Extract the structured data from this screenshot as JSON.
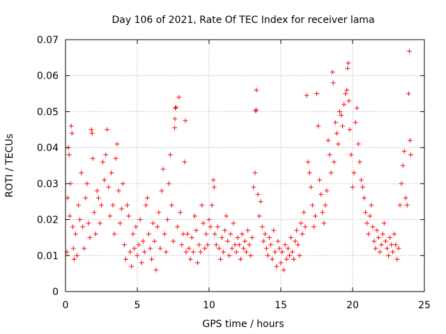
{
  "chart_data": {
    "type": "scatter",
    "title": "Day 106 of 2021, Rate Of TEC Index for receiver lama",
    "xlabel": "GPS time / hours",
    "ylabel": "ROTI / TECUs",
    "xlim": [
      0,
      25
    ],
    "ylim": [
      0,
      0.07
    ],
    "xticks": [
      0,
      5,
      10,
      15,
      20,
      25
    ],
    "yticks": [
      0,
      0.01,
      0.02,
      0.03,
      0.04,
      0.05,
      0.06,
      0.07
    ],
    "xtick_labels": [
      "0",
      "5",
      "10",
      "15",
      "20",
      "25"
    ],
    "ytick_labels": [
      "0",
      "0.01",
      "0.02",
      "0.03",
      "0.04",
      "0.05",
      "0.06",
      "0.07"
    ],
    "grid": true,
    "marker": "plus",
    "marker_color": "#ff0000",
    "series": [
      {
        "name": "ROTI",
        "points": [
          [
            0.1,
            0.011
          ],
          [
            0.15,
            0.026
          ],
          [
            0.2,
            0.04
          ],
          [
            0.25,
            0.038
          ],
          [
            0.3,
            0.021
          ],
          [
            0.35,
            0.03
          ],
          [
            0.4,
            0.046
          ],
          [
            0.45,
            0.044
          ],
          [
            0.5,
            0.018
          ],
          [
            0.55,
            0.012
          ],
          [
            0.6,
            0.009
          ],
          [
            0.7,
            0.016
          ],
          [
            0.8,
            0.01
          ],
          [
            0.9,
            0.024
          ],
          [
            1.0,
            0.02
          ],
          [
            1.1,
            0.033
          ],
          [
            1.2,
            0.018
          ],
          [
            1.3,
            0.012
          ],
          [
            1.4,
            0.026
          ],
          [
            1.5,
            0.03
          ],
          [
            1.6,
            0.019
          ],
          [
            1.7,
            0.015
          ],
          [
            1.8,
            0.045
          ],
          [
            1.85,
            0.044
          ],
          [
            1.9,
            0.037
          ],
          [
            2.0,
            0.022
          ],
          [
            2.1,
            0.016
          ],
          [
            2.2,
            0.028
          ],
          [
            2.3,
            0.026
          ],
          [
            2.4,
            0.019
          ],
          [
            2.5,
            0.024
          ],
          [
            2.6,
            0.036
          ],
          [
            2.7,
            0.031
          ],
          [
            2.8,
            0.038
          ],
          [
            2.9,
            0.045
          ],
          [
            3.0,
            0.029
          ],
          [
            3.1,
            0.021
          ],
          [
            3.2,
            0.033
          ],
          [
            3.3,
            0.024
          ],
          [
            3.4,
            0.016
          ],
          [
            3.5,
            0.037
          ],
          [
            3.6,
            0.041
          ],
          [
            3.7,
            0.028
          ],
          [
            3.8,
            0.019
          ],
          [
            3.9,
            0.023
          ],
          [
            4.0,
            0.03
          ],
          [
            4.1,
            0.013
          ],
          [
            4.2,
            0.009
          ],
          [
            4.3,
            0.024
          ],
          [
            4.4,
            0.021
          ],
          [
            4.5,
            0.011
          ],
          [
            4.6,
            0.007
          ],
          [
            4.7,
            0.016
          ],
          [
            4.8,
            0.012
          ],
          [
            4.9,
            0.018
          ],
          [
            5.0,
            0.01
          ],
          [
            5.1,
            0.013
          ],
          [
            5.2,
            0.02
          ],
          [
            5.3,
            0.008
          ],
          [
            5.4,
            0.014
          ],
          [
            5.5,
            0.011
          ],
          [
            5.6,
            0.024
          ],
          [
            5.7,
            0.026
          ],
          [
            5.8,
            0.016
          ],
          [
            5.9,
            0.012
          ],
          [
            6.0,
            0.009
          ],
          [
            6.1,
            0.019
          ],
          [
            6.2,
            0.014
          ],
          [
            6.3,
            0.006
          ],
          [
            6.4,
            0.018
          ],
          [
            6.5,
            0.022
          ],
          [
            6.6,
            0.012
          ],
          [
            6.7,
            0.028
          ],
          [
            6.8,
            0.034
          ],
          [
            6.9,
            0.016
          ],
          [
            7.0,
            0.011
          ],
          [
            7.1,
            0.02
          ],
          [
            7.2,
            0.03
          ],
          [
            7.3,
            0.038
          ],
          [
            7.4,
            0.024
          ],
          [
            7.5,
            0.014
          ],
          [
            7.6,
            0.0455
          ],
          [
            7.62,
            0.048
          ],
          [
            7.65,
            0.051
          ],
          [
            7.7,
            0.0512
          ],
          [
            7.9,
            0.054
          ],
          [
            7.8,
            0.018
          ],
          [
            8.0,
            0.022
          ],
          [
            8.1,
            0.013
          ],
          [
            8.2,
            0.016
          ],
          [
            8.3,
            0.036
          ],
          [
            8.35,
            0.0475
          ],
          [
            8.4,
            0.011
          ],
          [
            8.5,
            0.016
          ],
          [
            8.6,
            0.012
          ],
          [
            8.7,
            0.009
          ],
          [
            8.8,
            0.015
          ],
          [
            8.9,
            0.011
          ],
          [
            9.0,
            0.021
          ],
          [
            9.1,
            0.017
          ],
          [
            9.2,
            0.008
          ],
          [
            9.3,
            0.013
          ],
          [
            9.4,
            0.011
          ],
          [
            9.5,
            0.024
          ],
          [
            9.6,
            0.019
          ],
          [
            9.7,
            0.012
          ],
          [
            9.8,
            0.016
          ],
          [
            9.9,
            0.013
          ],
          [
            10.0,
            0.02
          ],
          [
            10.1,
            0.018
          ],
          [
            10.2,
            0.024
          ],
          [
            10.3,
            0.031
          ],
          [
            10.35,
            0.029
          ],
          [
            10.4,
            0.016
          ],
          [
            10.5,
            0.013
          ],
          [
            10.6,
            0.018
          ],
          [
            10.7,
            0.012
          ],
          [
            10.8,
            0.009
          ],
          [
            10.9,
            0.015
          ],
          [
            11.0,
            0.011
          ],
          [
            11.1,
            0.017
          ],
          [
            11.2,
            0.021
          ],
          [
            11.3,
            0.014
          ],
          [
            11.4,
            0.01
          ],
          [
            11.5,
            0.016
          ],
          [
            11.6,
            0.012
          ],
          [
            11.7,
            0.019
          ],
          [
            11.8,
            0.013
          ],
          [
            11.9,
            0.011
          ],
          [
            12.0,
            0.015
          ],
          [
            12.1,
            0.013
          ],
          [
            12.2,
            0.009
          ],
          [
            12.3,
            0.016
          ],
          [
            12.4,
            0.012
          ],
          [
            12.5,
            0.014
          ],
          [
            12.6,
            0.011
          ],
          [
            12.7,
            0.017
          ],
          [
            12.8,
            0.013
          ],
          [
            12.9,
            0.01
          ],
          [
            13.0,
            0.015
          ],
          [
            13.1,
            0.029
          ],
          [
            13.2,
            0.033
          ],
          [
            13.25,
            0.0502
          ],
          [
            13.28,
            0.0505
          ],
          [
            13.3,
            0.056
          ],
          [
            13.4,
            0.027
          ],
          [
            13.5,
            0.021
          ],
          [
            13.6,
            0.025
          ],
          [
            13.7,
            0.018
          ],
          [
            13.8,
            0.014
          ],
          [
            13.9,
            0.016
          ],
          [
            14.0,
            0.012
          ],
          [
            14.1,
            0.01
          ],
          [
            14.2,
            0.015
          ],
          [
            14.3,
            0.013
          ],
          [
            14.4,
            0.009
          ],
          [
            14.5,
            0.017
          ],
          [
            14.6,
            0.011
          ],
          [
            14.7,
            0.007
          ],
          [
            14.8,
            0.014
          ],
          [
            14.9,
            0.012
          ],
          [
            15.0,
            0.008
          ],
          [
            15.1,
            0.011
          ],
          [
            15.2,
            0.006
          ],
          [
            15.3,
            0.013
          ],
          [
            15.4,
            0.009
          ],
          [
            15.5,
            0.012
          ],
          [
            15.6,
            0.01
          ],
          [
            15.7,
            0.015
          ],
          [
            15.8,
            0.011
          ],
          [
            15.9,
            0.009
          ],
          [
            16.0,
            0.014
          ],
          [
            16.1,
            0.017
          ],
          [
            16.2,
            0.013
          ],
          [
            16.3,
            0.01
          ],
          [
            16.4,
            0.019
          ],
          [
            16.5,
            0.016
          ],
          [
            16.6,
            0.022
          ],
          [
            16.7,
            0.018
          ],
          [
            16.8,
            0.0545
          ],
          [
            16.9,
            0.036
          ],
          [
            17.0,
            0.033
          ],
          [
            17.1,
            0.029
          ],
          [
            17.2,
            0.024
          ],
          [
            17.3,
            0.018
          ],
          [
            17.4,
            0.021
          ],
          [
            17.5,
            0.055
          ],
          [
            17.6,
            0.046
          ],
          [
            17.7,
            0.031
          ],
          [
            17.8,
            0.027
          ],
          [
            17.9,
            0.022
          ],
          [
            18.0,
            0.019
          ],
          [
            18.1,
            0.024
          ],
          [
            18.2,
            0.028
          ],
          [
            18.3,
            0.042
          ],
          [
            18.4,
            0.038
          ],
          [
            18.5,
            0.033
          ],
          [
            18.6,
            0.061
          ],
          [
            18.65,
            0.058
          ],
          [
            18.7,
            0.036
          ],
          [
            18.8,
            0.047
          ],
          [
            18.9,
            0.044
          ],
          [
            19.0,
            0.041
          ],
          [
            19.1,
            0.05
          ],
          [
            19.2,
            0.049
          ],
          [
            19.3,
            0.046
          ],
          [
            19.4,
            0.052
          ],
          [
            19.5,
            0.055
          ],
          [
            19.6,
            0.056
          ],
          [
            19.65,
            0.062
          ],
          [
            19.7,
            0.0635
          ],
          [
            19.75,
            0.053
          ],
          [
            19.8,
            0.045
          ],
          [
            19.9,
            0.038
          ],
          [
            20.0,
            0.029
          ],
          [
            20.1,
            0.033
          ],
          [
            20.2,
            0.047
          ],
          [
            20.3,
            0.051
          ],
          [
            20.4,
            0.041
          ],
          [
            20.5,
            0.036
          ],
          [
            20.6,
            0.031
          ],
          [
            20.7,
            0.029
          ],
          [
            20.8,
            0.026
          ],
          [
            20.9,
            0.022
          ],
          [
            21.0,
            0.019
          ],
          [
            21.1,
            0.016
          ],
          [
            21.2,
            0.021
          ],
          [
            21.3,
            0.024
          ],
          [
            21.4,
            0.018
          ],
          [
            21.5,
            0.014
          ],
          [
            21.6,
            0.012
          ],
          [
            21.7,
            0.017
          ],
          [
            21.8,
            0.015
          ],
          [
            21.9,
            0.011
          ],
          [
            22.0,
            0.013
          ],
          [
            22.1,
            0.016
          ],
          [
            22.2,
            0.019
          ],
          [
            22.3,
            0.014
          ],
          [
            22.4,
            0.012
          ],
          [
            22.5,
            0.01
          ],
          [
            22.6,
            0.015
          ],
          [
            22.7,
            0.013
          ],
          [
            22.8,
            0.011
          ],
          [
            22.9,
            0.016
          ],
          [
            23.0,
            0.013
          ],
          [
            23.1,
            0.009
          ],
          [
            23.2,
            0.012
          ],
          [
            23.3,
            0.024
          ],
          [
            23.4,
            0.03
          ],
          [
            23.5,
            0.035
          ],
          [
            23.6,
            0.039
          ],
          [
            23.7,
            0.026
          ],
          [
            23.8,
            0.024
          ],
          [
            23.9,
            0.055
          ],
          [
            23.95,
            0.0668
          ],
          [
            24.0,
            0.042
          ],
          [
            24.05,
            0.038
          ]
        ]
      }
    ]
  }
}
